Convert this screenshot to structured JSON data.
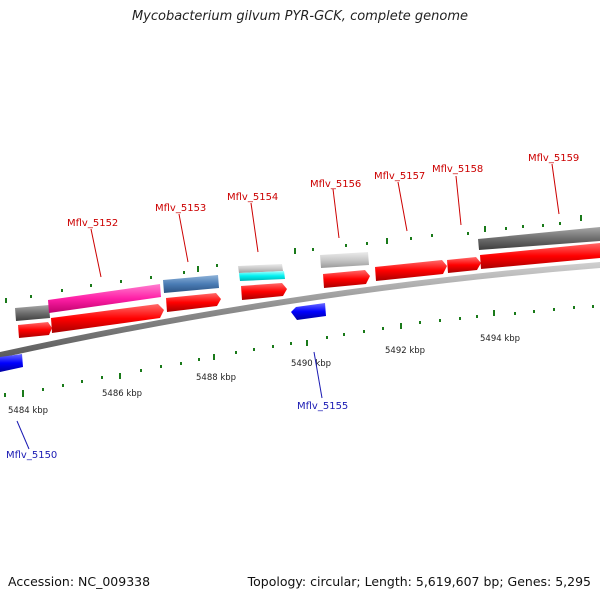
{
  "title": "Mycobacterium gilvum PYR-GCK, complete genome",
  "footer": {
    "accession": "Accession: NC_009338",
    "topology": "Topology: circular; Length: 5,619,607 bp; Genes: 5,295"
  },
  "colors": {
    "forward_cds": "#ff0000",
    "reverse_cds": "#0000ff",
    "label_forward": "#cc0000",
    "label_reverse": "#1a1ab3",
    "backbone": "#8c8c8c",
    "tick": "#1a7a1a"
  },
  "kbp_labels": [
    "5484 kbp",
    "5486 kbp",
    "5488 kbp",
    "5490 kbp",
    "5492 kbp",
    "5494 kbp"
  ],
  "genes": [
    {
      "label": "Mflv_5150",
      "strand": "reverse"
    },
    {
      "label": "Mflv_5152",
      "strand": "forward"
    },
    {
      "label": "Mflv_5153",
      "strand": "forward"
    },
    {
      "label": "Mflv_5154",
      "strand": "forward"
    },
    {
      "label": "Mflv_5155",
      "strand": "reverse"
    },
    {
      "label": "Mflv_5156",
      "strand": "forward"
    },
    {
      "label": "Mflv_5157",
      "strand": "forward"
    },
    {
      "label": "Mflv_5158",
      "strand": "forward"
    },
    {
      "label": "Mflv_5159",
      "strand": "forward"
    }
  ]
}
